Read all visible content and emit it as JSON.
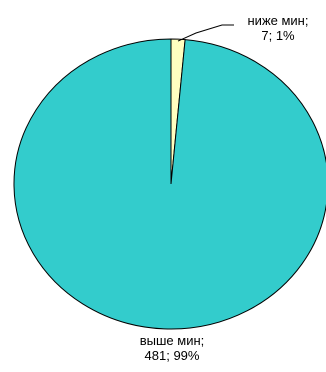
{
  "chart_data": {
    "type": "pie",
    "title": "",
    "slices": [
      {
        "name": "ниже мин;",
        "value": 7,
        "percent_label": "7; 1%",
        "color": "#ffffc0"
      },
      {
        "name": "выше мин;",
        "value": 481,
        "percent_label": "481; 99%",
        "color": "#33cccc"
      }
    ],
    "legend": "none",
    "slice_border_color": "#000000"
  }
}
